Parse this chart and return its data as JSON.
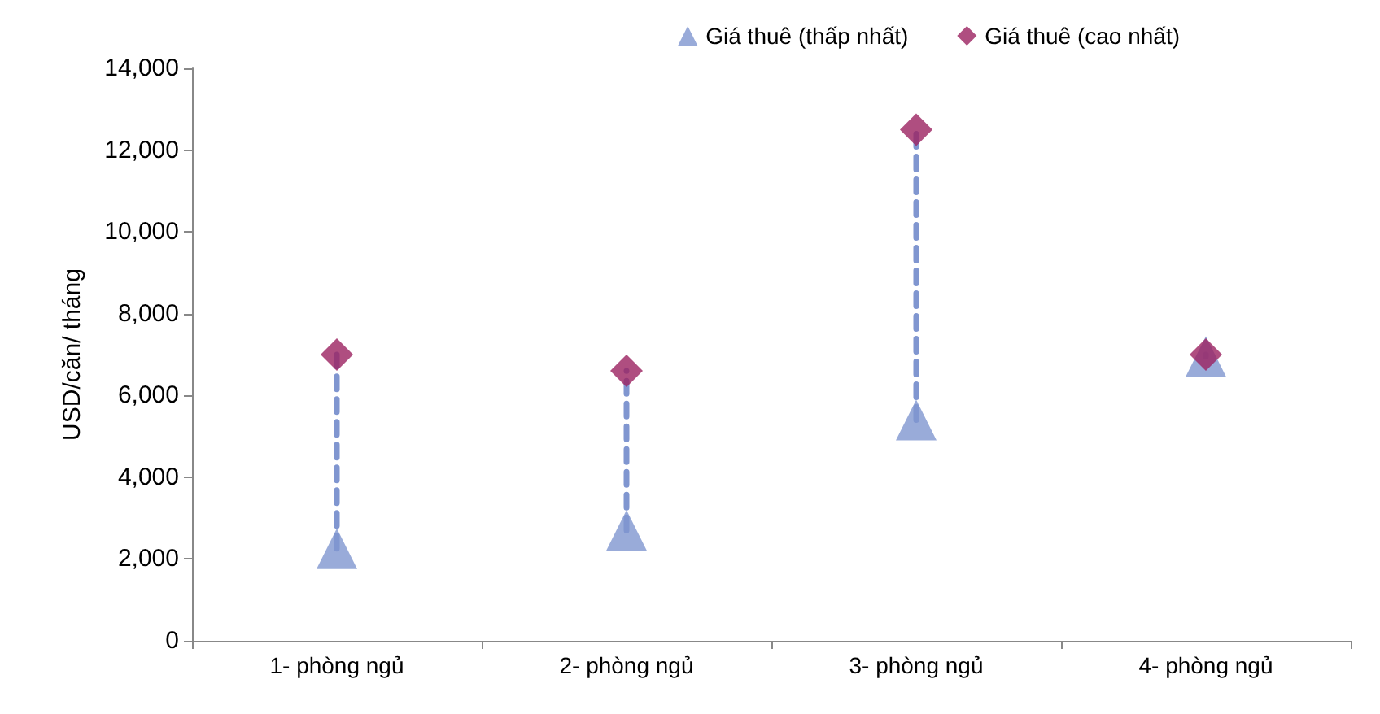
{
  "chart_data": {
    "type": "scatter",
    "ylabel": "USD/căn/ tháng",
    "categories": [
      "1- phòng ngủ",
      "2- phòng ngủ",
      "3- phòng ngủ",
      "4- phòng ngủ"
    ],
    "series": [
      {
        "name": "Giá thuê (thấp nhất)",
        "color": "#8096d0",
        "marker": "triangle",
        "values": [
          2250,
          2700,
          5400,
          6950
        ]
      },
      {
        "name": "Giá thuê (cao nhất)",
        "color": "#9b2260",
        "marker": "diamond",
        "values": [
          7000,
          6600,
          12500,
          7000
        ]
      }
    ],
    "line_style": "dashed",
    "ylim": [
      0,
      14000
    ],
    "yticks": [
      0,
      {
        "value": 2000,
        "label": "2,000"
      },
      {
        "value": 4000,
        "label": "4,000"
      },
      {
        "value": 6000,
        "label": "6,000"
      },
      {
        "value": 8000,
        "label": "8,000"
      },
      {
        "value": 10000,
        "label": "10,000"
      },
      {
        "value": 12000,
        "label": "12,000"
      },
      {
        "value": 14000,
        "label": "14,000"
      }
    ],
    "grid": false,
    "legend": "top right"
  }
}
